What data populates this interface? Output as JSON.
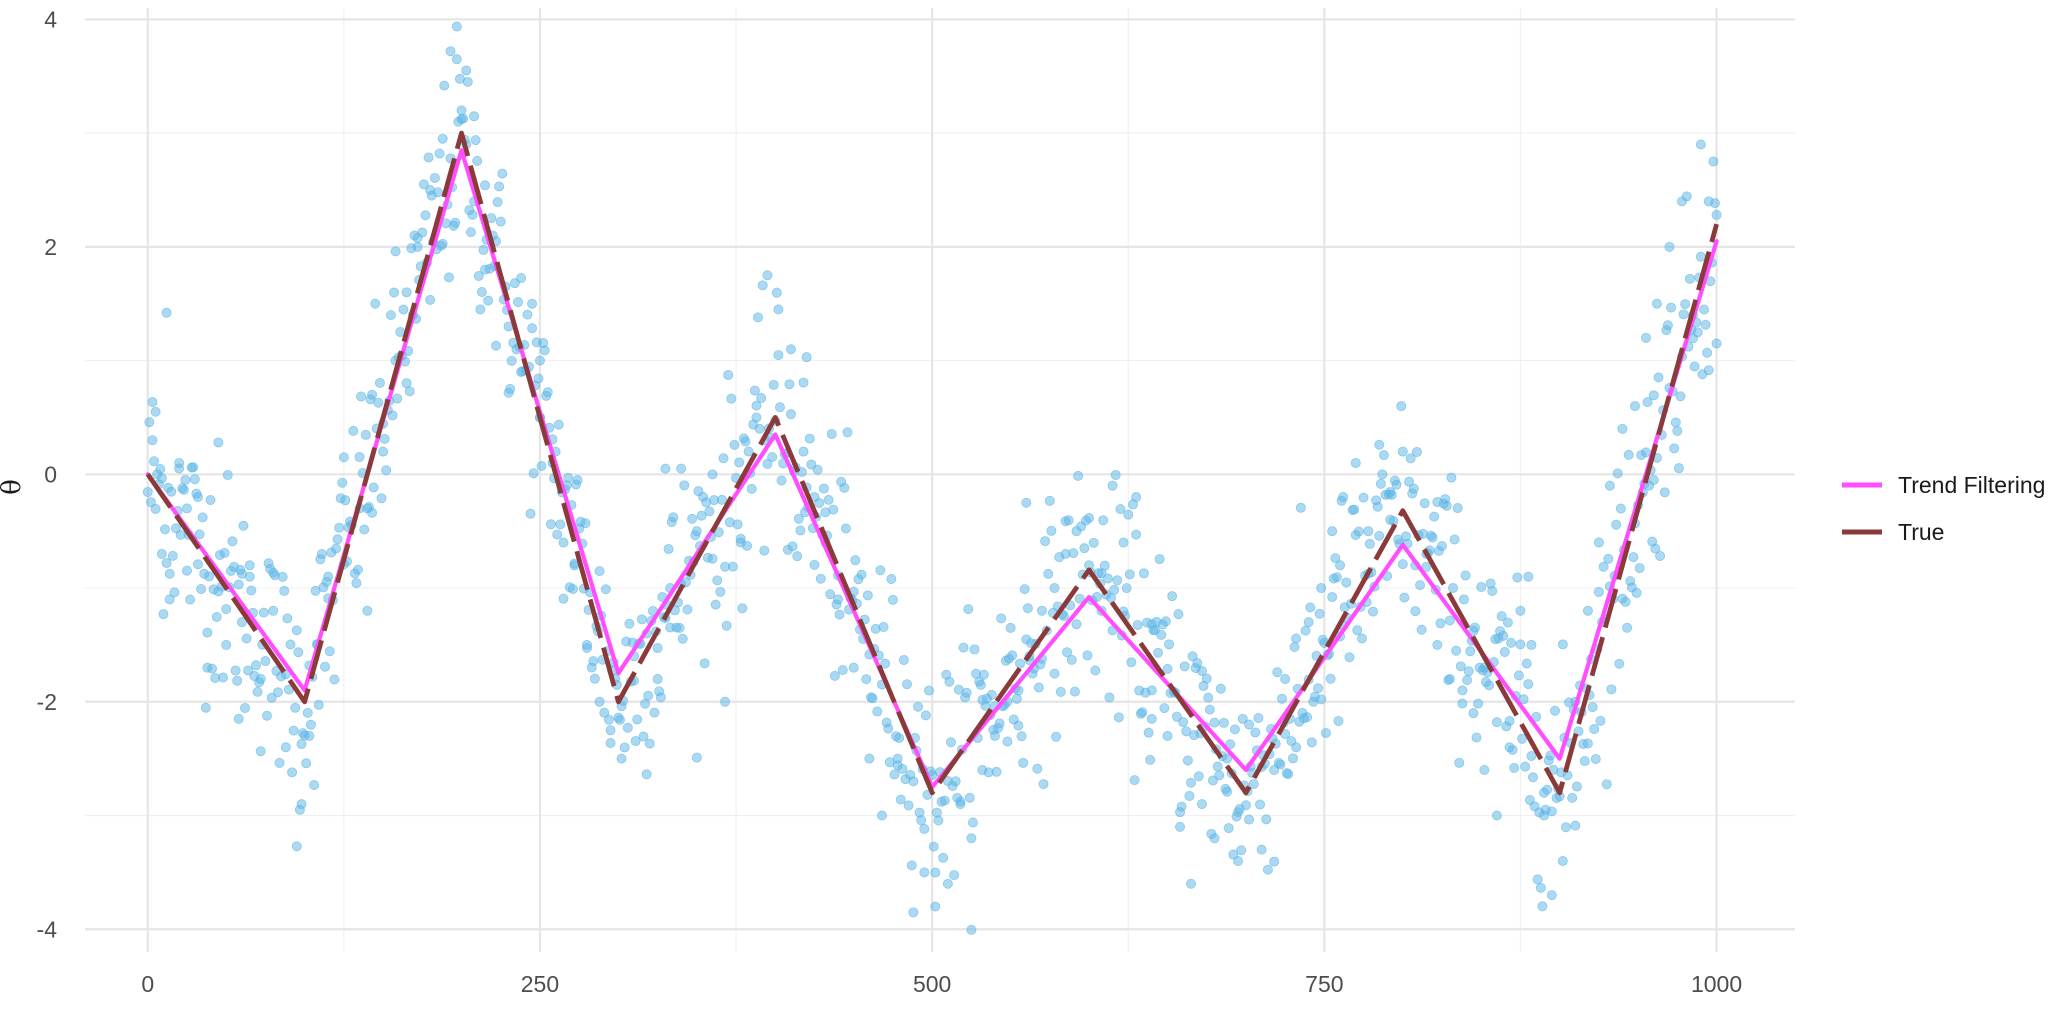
{
  "chart_data": {
    "type": "line",
    "title": "",
    "xlabel": "",
    "ylabel": "θ",
    "xlim": [
      -40,
      1050
    ],
    "ylim": [
      -4.2,
      4.1
    ],
    "x_ticks": [
      0,
      250,
      500,
      750,
      1000
    ],
    "x_tick_labels": [
      "0",
      "250",
      "500",
      "750",
      "1000"
    ],
    "y_ticks": [
      -4,
      -2,
      0,
      2,
      4
    ],
    "y_tick_labels": [
      "-4",
      "-2",
      "0",
      "2",
      "4"
    ],
    "grid": true,
    "legend_position": "right",
    "series": [
      {
        "name": "Trend Filtering",
        "kind": "line",
        "color": "#ff4dff",
        "x": [
          0,
          100,
          200,
          300,
          400,
          500,
          600,
          700,
          800,
          900,
          1000
        ],
        "y": [
          0.0,
          -1.9,
          2.85,
          -1.75,
          0.35,
          -2.75,
          -1.08,
          -2.6,
          -0.62,
          -2.5,
          2.05
        ]
      },
      {
        "name": "True",
        "kind": "line",
        "color": "#8b3a3a",
        "x": [
          0,
          100,
          200,
          300,
          400,
          500,
          600,
          700,
          800,
          900,
          1000
        ],
        "y": [
          0.0,
          -2.0,
          3.0,
          -2.0,
          0.5,
          -2.8,
          -0.84,
          -2.8,
          -0.32,
          -2.8,
          2.2
        ]
      }
    ],
    "points": {
      "color": "#5ab4e5",
      "note_visible": "",
      "x": [
        3,
        5,
        9,
        12,
        14,
        20,
        25,
        32,
        38,
        45,
        50,
        58,
        65,
        72,
        80,
        88,
        95,
        98,
        103,
        108,
        115,
        125,
        135,
        143,
        150,
        158,
        165,
        172,
        180,
        188,
        193,
        197,
        200,
        203,
        208,
        215,
        222,
        230,
        238,
        245,
        250,
        258,
        265,
        272,
        280,
        288,
        295,
        302,
        310,
        318,
        325,
        333,
        340,
        350,
        360,
        368,
        378,
        388,
        395,
        402,
        410,
        418,
        425,
        432,
        440,
        450,
        460,
        468,
        478,
        488,
        495,
        502,
        510,
        518,
        525,
        532,
        540,
        548,
        555,
        562,
        570,
        578,
        585,
        592,
        600,
        608,
        615,
        622,
        630,
        640,
        650,
        658,
        665,
        672,
        680,
        688,
        695,
        702,
        710,
        718,
        725,
        732,
        740,
        748,
        755,
        762,
        770,
        778,
        785,
        792,
        800,
        808,
        815,
        822,
        830,
        838,
        845,
        852,
        860,
        868,
        875,
        882,
        890,
        895,
        902,
        910,
        918,
        925,
        932,
        940,
        948,
        955,
        962,
        970,
        978,
        985,
        990,
        995,
        1000,
        60,
        140,
        250,
        330,
        420,
        560,
        640,
        760,
        880,
        960
      ],
      "y": [
        0.3,
        0.55,
        -0.7,
        1.42,
        -1.1,
        0.1,
        -0.3,
        -0.2,
        -1.7,
        0.28,
        -1.5,
        -2.15,
        -0.8,
        -1.8,
        -1.2,
        -2.4,
        -3.27,
        -2.9,
        -2.3,
        -1.5,
        -0.9,
        0.15,
        -0.3,
        0.7,
        0.2,
        1.0,
        1.6,
        2.0,
        2.5,
        2.95,
        3.72,
        3.65,
        3.2,
        2.9,
        2.4,
        1.8,
        2.05,
        1.3,
        0.9,
        1.5,
        0.5,
        0.1,
        -0.6,
        -0.8,
        -1.5,
        -2.0,
        -2.25,
        -2.5,
        -1.6,
        -1.4,
        -1.8,
        -1.0,
        0.05,
        -0.5,
        0.0,
        -2.0,
        -0.6,
        0.5,
        1.75,
        1.45,
        1.1,
        0.2,
        -0.2,
        -0.6,
        -1.1,
        -1.7,
        -2.5,
        -3.0,
        -2.5,
        -2.7,
        -3.5,
        -3.8,
        -3.6,
        -2.9,
        -3.2,
        -2.6,
        -2.3,
        -2.0,
        -1.9,
        -1.6,
        -1.2,
        -1.0,
        -0.7,
        -0.5,
        -0.8,
        -1.2,
        -0.1,
        -0.6,
        -0.2,
        -1.9,
        -2.3,
        -3.1,
        -3.6,
        -2.9,
        -3.2,
        -2.5,
        -3.4,
        -2.2,
        -3.3,
        -2.6,
        -1.8,
        -2.4,
        -1.3,
        -1.0,
        -0.5,
        -0.2,
        0.1,
        -0.5,
        0.26,
        -0.4,
        0.2,
        -0.8,
        -0.7,
        -1.5,
        -1.8,
        -1.9,
        -2.1,
        -2.6,
        -3.0,
        -2.4,
        -1.2,
        -1.5,
        -2.8,
        -3.7,
        -3.4,
        -2.0,
        -1.2,
        -0.6,
        -0.1,
        0.4,
        0.6,
        1.2,
        1.5,
        2.0,
        2.4,
        1.4,
        2.9,
        2.4,
        1.15,
        -1.3,
        -1.2,
        0.5,
        0.05,
        1.03,
        -0.25,
        -2.15,
        -0.8,
        -0.9,
        -0.05
      ]
    }
  }
}
